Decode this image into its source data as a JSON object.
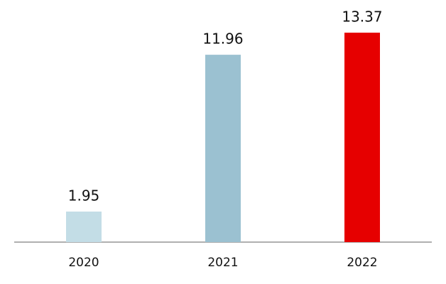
{
  "chart_data": {
    "type": "bar",
    "categories": [
      "2020",
      "2021",
      "2022"
    ],
    "values": [
      1.95,
      11.96,
      13.37
    ],
    "colors": [
      "#c3dde6",
      "#9bc1d1",
      "#e60000"
    ]
  }
}
